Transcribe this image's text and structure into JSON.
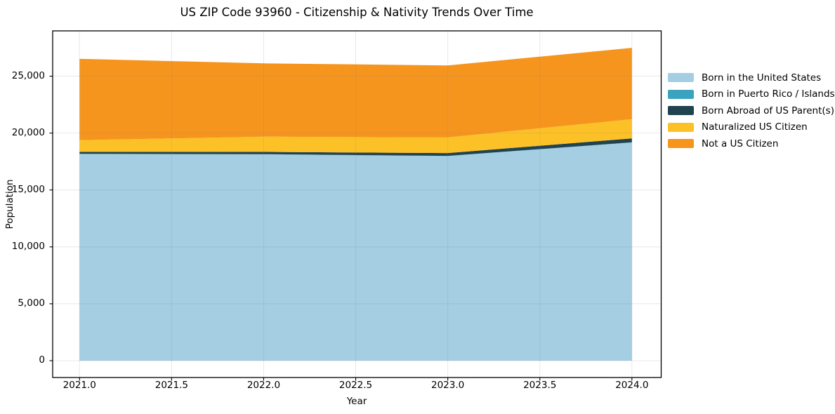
{
  "title": "US ZIP Code 93960 - Citizenship & Nativity Trends Over Time",
  "chart_data": {
    "type": "area",
    "stacked": true,
    "title": "US ZIP Code 93960 - Citizenship & Nativity Trends Over Time",
    "xlabel": "Year",
    "ylabel": "Population",
    "x": [
      2021,
      2022,
      2023,
      2024
    ],
    "series": [
      {
        "name": "Born in the United States",
        "color": "#a5cee2",
        "values": [
          18160,
          18130,
          17980,
          19170
        ]
      },
      {
        "name": "Born in Puerto Rico / Islands",
        "color": "#3ba3be",
        "values": [
          15,
          15,
          15,
          20
        ]
      },
      {
        "name": "Born Abroad of US Parent(s)",
        "color": "#21424f",
        "values": [
          180,
          200,
          245,
          340
        ]
      },
      {
        "name": "Naturalized US Citizen",
        "color": "#fdc128",
        "values": [
          1020,
          1340,
          1375,
          1690
        ]
      },
      {
        "name": "Not a US Citizen",
        "color": "#f6951e",
        "values": [
          7150,
          6440,
          6330,
          6270
        ]
      }
    ],
    "totals": [
      26525,
      26125,
      25945,
      27490
    ],
    "xticks": [
      2021.0,
      2021.5,
      2022.0,
      2022.5,
      2023.0,
      2023.5,
      2024.0
    ],
    "xtick_labels": [
      "2021.0",
      "2021.5",
      "2022.0",
      "2022.5",
      "2023.0",
      "2023.5",
      "2024.0"
    ],
    "yticks": [
      0,
      5000,
      10000,
      15000,
      20000,
      25000
    ],
    "ytick_labels": [
      "0",
      "5,000",
      "10,000",
      "15,000",
      "20,000",
      "25,000"
    ],
    "xlim": [
      2020.854,
      2024.159
    ],
    "ylim": [
      -1480,
      28980
    ],
    "grid": true,
    "grid_color": "rgba(130,130,130,0.18)",
    "spine_color": "#000000",
    "background": "#ffffff",
    "legend_position": "outside-right"
  }
}
